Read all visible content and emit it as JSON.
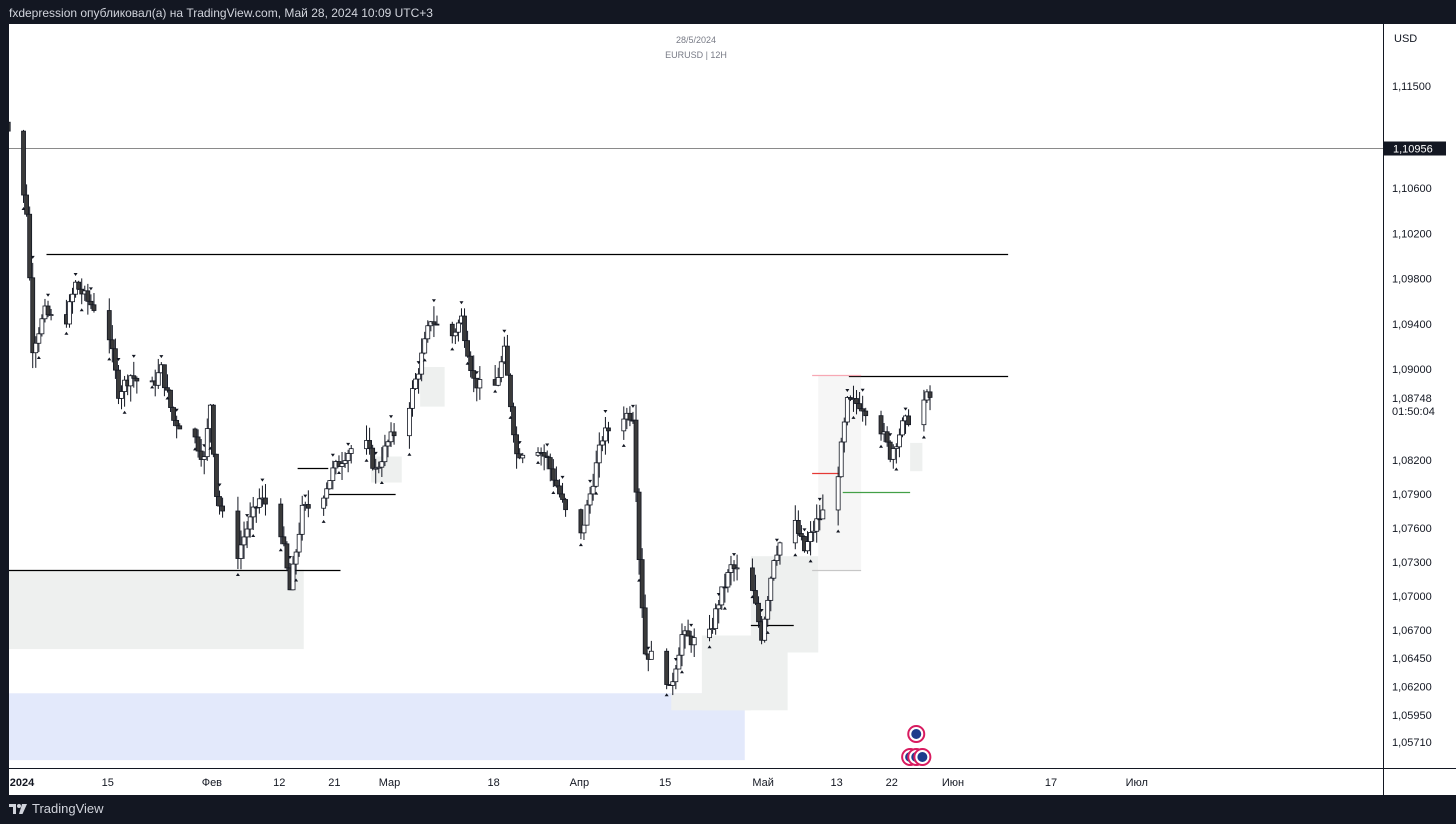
{
  "header": {
    "publish_text": "fxdepression опубликовал(а) на TradingView.com, Май 28, 2024 10:09 UTC+3"
  },
  "footer": {
    "brand": "TradingView"
  },
  "chart_data": {
    "type": "candlestick",
    "title": "28/5/2024",
    "subtitle": "EURUSD | 12H",
    "currency": "USD",
    "ylim": [
      1.0555,
      1.1215
    ],
    "price_ticks": [
      "1,11500",
      "1,10600",
      "1,10200",
      "1,09800",
      "1,09400",
      "1,09000",
      "1,08200",
      "1,07900",
      "1,07600",
      "1,07300",
      "1,07000",
      "1,06700",
      "1,06450",
      "1,06200",
      "1,05950",
      "1,05710"
    ],
    "price_tick_values": [
      1.115,
      1.106,
      1.102,
      1.098,
      1.094,
      1.09,
      1.082,
      1.079,
      1.076,
      1.073,
      1.07,
      1.067,
      1.0645,
      1.062,
      1.0595,
      1.0571
    ],
    "horizontal_line": {
      "value": 1.10956,
      "label": "1,10956"
    },
    "current_price": {
      "value": 1.08748,
      "label": "1,08748",
      "countdown": "01:50:04"
    },
    "x_ticks": [
      {
        "label": "2024",
        "date": "2024-01-01",
        "bold": true
      },
      {
        "label": "15",
        "date": "2024-01-15"
      },
      {
        "label": "Фев",
        "date": "2024-02-01"
      },
      {
        "label": "12",
        "date": "2024-02-12"
      },
      {
        "label": "21",
        "date": "2024-02-21"
      },
      {
        "label": "Мар",
        "date": "2024-03-01"
      },
      {
        "label": "18",
        "date": "2024-03-18"
      },
      {
        "label": "Апр",
        "date": "2024-04-01"
      },
      {
        "label": "15",
        "date": "2024-04-15"
      },
      {
        "label": "Май",
        "date": "2024-05-01"
      },
      {
        "label": "13",
        "date": "2024-05-13"
      },
      {
        "label": "22",
        "date": "2024-05-22"
      },
      {
        "label": "Июн",
        "date": "2024-06-01"
      },
      {
        "label": "17",
        "date": "2024-06-17"
      },
      {
        "label": "Июл",
        "date": "2024-07-01"
      }
    ],
    "path_anchors": [
      [
        "2023-12-28",
        1.11
      ],
      [
        "2023-12-29",
        1.1135
      ],
      [
        "2024-01-02",
        1.104
      ],
      [
        "2024-01-03",
        1.092
      ],
      [
        "2024-01-05",
        1.095
      ],
      [
        "2024-01-08",
        1.0935
      ],
      [
        "2024-01-10",
        1.0975
      ],
      [
        "2024-01-12",
        1.096
      ],
      [
        "2024-01-15",
        1.0945
      ],
      [
        "2024-01-17",
        1.088
      ],
      [
        "2024-01-19",
        1.0895
      ],
      [
        "2024-01-22",
        1.088
      ],
      [
        "2024-01-24",
        1.09
      ],
      [
        "2024-01-26",
        1.0855
      ],
      [
        "2024-01-29",
        1.0845
      ],
      [
        "2024-01-31",
        1.082
      ],
      [
        "2024-02-01",
        1.087
      ],
      [
        "2024-02-02",
        1.079
      ],
      [
        "2024-02-05",
        1.073
      ],
      [
        "2024-02-07",
        1.076
      ],
      [
        "2024-02-09",
        1.0785
      ],
      [
        "2024-02-12",
        1.0775
      ],
      [
        "2024-02-14",
        1.0705
      ],
      [
        "2024-02-16",
        1.0775
      ],
      [
        "2024-02-19",
        1.0785
      ],
      [
        "2024-02-21",
        1.081
      ],
      [
        "2024-02-23",
        1.0825
      ],
      [
        "2024-02-26",
        1.084
      ],
      [
        "2024-02-28",
        1.081
      ],
      [
        "2024-03-01",
        1.0835
      ],
      [
        "2024-03-04",
        1.086
      ],
      [
        "2024-03-06",
        1.09
      ],
      [
        "2024-03-08",
        1.0945
      ],
      [
        "2024-03-11",
        1.0925
      ],
      [
        "2024-03-13",
        1.0945
      ],
      [
        "2024-03-15",
        1.089
      ],
      [
        "2024-03-18",
        1.0875
      ],
      [
        "2024-03-20",
        1.0915
      ],
      [
        "2024-03-22",
        1.0825
      ],
      [
        "2024-03-25",
        1.0835
      ],
      [
        "2024-03-27",
        1.082
      ],
      [
        "2024-03-29",
        1.079
      ],
      [
        "2024-04-01",
        1.074
      ],
      [
        "2024-04-03",
        1.079
      ],
      [
        "2024-04-05",
        1.084
      ],
      [
        "2024-04-08",
        1.086
      ],
      [
        "2024-04-10",
        1.086
      ],
      [
        "2024-04-11",
        1.0735
      ],
      [
        "2024-04-12",
        1.065
      ],
      [
        "2024-04-15",
        1.064
      ],
      [
        "2024-04-16",
        1.0615
      ],
      [
        "2024-04-18",
        1.0665
      ],
      [
        "2024-04-22",
        1.0655
      ],
      [
        "2024-04-24",
        1.0695
      ],
      [
        "2024-04-26",
        1.0725
      ],
      [
        "2024-04-29",
        1.0715
      ],
      [
        "2024-05-01",
        1.0665
      ],
      [
        "2024-05-03",
        1.0735
      ],
      [
        "2024-05-06",
        1.077
      ],
      [
        "2024-05-08",
        1.074
      ],
      [
        "2024-05-10",
        1.0765
      ],
      [
        "2024-05-13",
        1.079
      ],
      [
        "2024-05-15",
        1.087
      ],
      [
        "2024-05-17",
        1.087
      ],
      [
        "2024-05-20",
        1.0855
      ],
      [
        "2024-05-22",
        1.0825
      ],
      [
        "2024-05-24",
        1.085
      ],
      [
        "2024-05-28",
        1.0875
      ]
    ],
    "levels": [
      {
        "from": "2024-01-05",
        "to": "2024-06-10",
        "value": 1.1002,
        "color": "#000000"
      },
      {
        "from": "2023-12-27",
        "to": "2024-02-22",
        "value": 1.0723,
        "color": "#000000"
      },
      {
        "from": "2024-02-15",
        "to": "2024-02-20",
        "value": 1.0813,
        "color": "#000000"
      },
      {
        "from": "2024-02-20",
        "to": "2024-03-02",
        "value": 1.079,
        "color": "#000000"
      },
      {
        "from": "2024-05-15",
        "to": "2024-06-10",
        "value": 1.0894,
        "color": "#000000"
      },
      {
        "from": "2024-04-29",
        "to": "2024-05-06",
        "value": 1.0674,
        "color": "#000000"
      },
      {
        "from": "2024-05-09",
        "to": "2024-05-17",
        "value": 1.0895,
        "color": "#f7a8b4"
      },
      {
        "from": "2024-05-09",
        "to": "2024-05-17",
        "value": 1.0723,
        "color": "#c7c7c7"
      },
      {
        "from": "2024-05-09",
        "to": "2024-05-14",
        "value": 1.0808,
        "color": "#e53935"
      },
      {
        "from": "2024-05-14",
        "to": "2024-05-25",
        "value": 1.0792,
        "color": "#43a047"
      }
    ],
    "zones": [
      {
        "from": "2023-12-27",
        "to": "2024-02-16",
        "top": 1.0723,
        "bottom": 1.0653,
        "color": "#eef0ef"
      },
      {
        "from": "2023-12-27",
        "to": "2024-04-28",
        "top": 1.0614,
        "bottom": 1.0555,
        "color": "#e3e9fb"
      },
      {
        "from": "2024-04-16",
        "to": "2024-04-29",
        "top": 1.0614,
        "bottom": 1.0599,
        "color": "#eef0ef"
      },
      {
        "from": "2024-04-21",
        "to": "2024-05-05",
        "top": 1.0665,
        "bottom": 1.0599,
        "color": "#eef0ef"
      },
      {
        "from": "2024-04-29",
        "to": "2024-05-10",
        "top": 1.0735,
        "bottom": 1.065,
        "color": "#eef0ef"
      },
      {
        "from": "2024-05-10",
        "to": "2024-05-17",
        "top": 1.0895,
        "bottom": 1.0723,
        "color": "#f6f6f6"
      },
      {
        "from": "2024-03-06",
        "to": "2024-03-10",
        "top": 1.0902,
        "bottom": 1.0867,
        "color": "#eef0ef"
      },
      {
        "from": "2024-02-27",
        "to": "2024-03-03",
        "top": 1.0823,
        "bottom": 1.08,
        "color": "#eef0ef"
      },
      {
        "from": "2024-05-25",
        "to": "2024-05-27",
        "top": 1.0835,
        "bottom": 1.081,
        "color": "#eef0ef"
      }
    ],
    "news_markers": [
      {
        "date": "2024-05-26",
        "row": 1
      },
      {
        "date": "2024-05-25",
        "row": 0
      },
      {
        "date": "2024-05-26",
        "row": 0
      },
      {
        "date": "2024-05-27",
        "row": 0
      }
    ]
  }
}
